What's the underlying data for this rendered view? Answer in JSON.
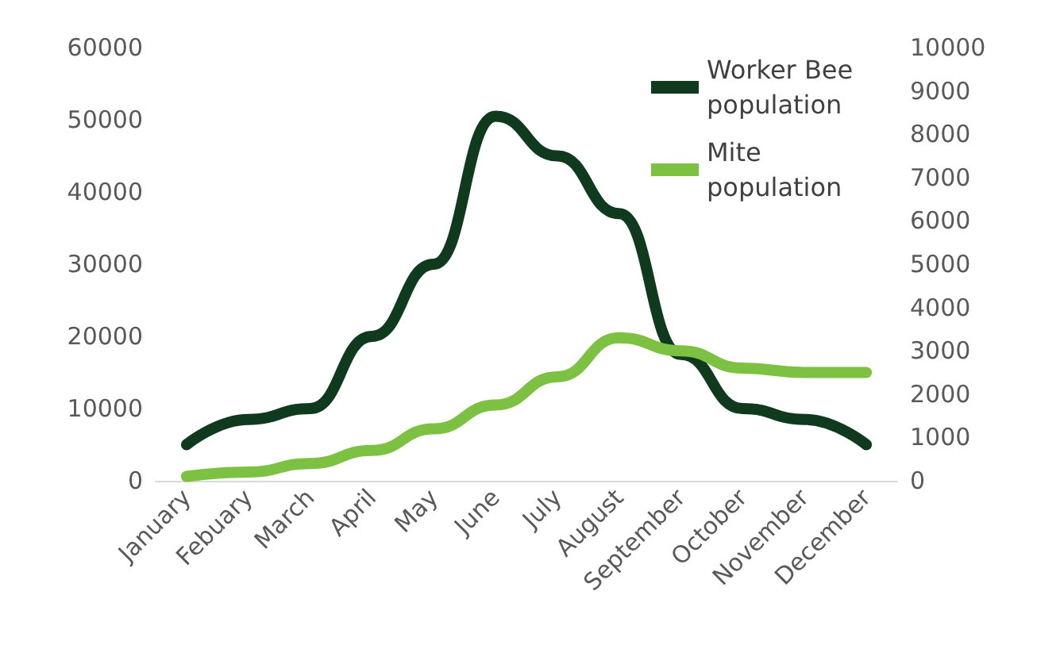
{
  "chart_data": {
    "type": "line",
    "categories": [
      "January",
      "Febuary",
      "March",
      "April",
      "May",
      "June",
      "July",
      "August",
      "September",
      "October",
      "November",
      "December"
    ],
    "series": [
      {
        "name": "Worker Bee population",
        "color": "#0f3a1e",
        "values": [
          5000,
          8500,
          10000,
          20000,
          30000,
          50500,
          45000,
          37000,
          17500,
          10000,
          8500,
          5000
        ]
      },
      {
        "name": "Mite population",
        "color": "#7dc142",
        "axis": "y2",
        "values": [
          100,
          200,
          400,
          700,
          1200,
          1750,
          2400,
          3300,
          3000,
          2600,
          2500,
          2500
        ]
      }
    ],
    "ylim": [
      0,
      60000
    ],
    "yticks": [
      0,
      10000,
      20000,
      30000,
      40000,
      50000,
      60000
    ],
    "y2lim": [
      0,
      10000
    ],
    "y2ticks": [
      0,
      1000,
      2000,
      3000,
      4000,
      5000,
      6000,
      7000,
      8000,
      9000,
      10000
    ],
    "grid": false,
    "legend": "top right",
    "marker": "none",
    "line_style": "solid"
  }
}
